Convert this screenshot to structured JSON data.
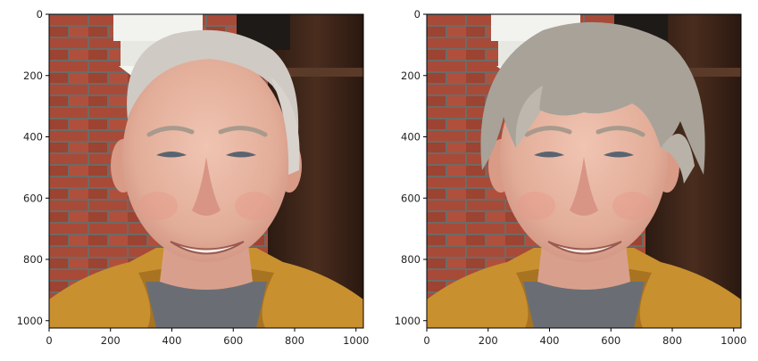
{
  "figure": {
    "panels": [
      {
        "id": "left",
        "description_icon": "portrait-photo-icon",
        "x_ticks": [
          "0",
          "200",
          "400",
          "600",
          "800",
          "1000"
        ],
        "y_ticks": [
          "0",
          "200",
          "400",
          "600",
          "800",
          "1000"
        ],
        "hair_color": "#cfcac3",
        "hair_style": "receding-short"
      },
      {
        "id": "right",
        "description_icon": "portrait-photo-icon",
        "x_ticks": [
          "0",
          "200",
          "400",
          "600",
          "800",
          "1000"
        ],
        "y_ticks": [
          "0",
          "200",
          "400",
          "600",
          "800",
          "1000"
        ],
        "hair_color": "#a8a299",
        "hair_style": "full-bangs"
      }
    ],
    "tick_values": [
      0,
      200,
      400,
      600,
      800,
      1000
    ],
    "image_extent": [
      0,
      1024
    ],
    "colors": {
      "brick": "#a84a38",
      "mortar": "#6e6a66",
      "wood": "#3a2418",
      "skin": "#e8b8a6",
      "hoodie": "#c8902f",
      "lamp": "#f2f2ee"
    }
  }
}
